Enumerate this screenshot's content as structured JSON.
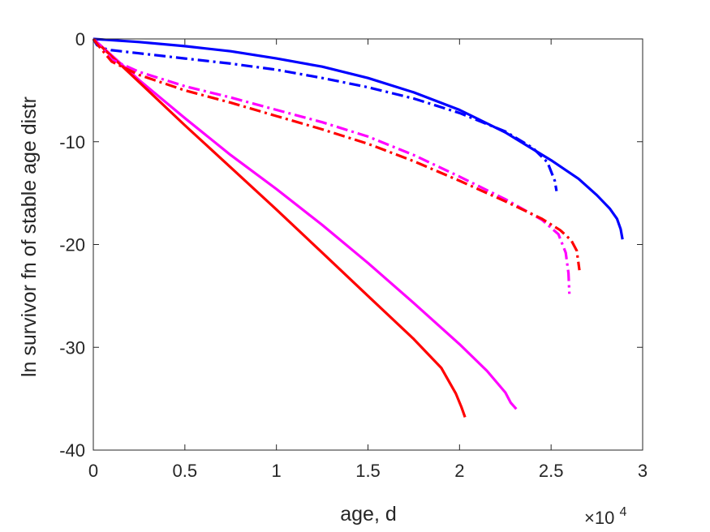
{
  "chart_data": {
    "type": "line",
    "title": "",
    "xlabel": "age, d",
    "ylabel": "ln survivor fn of stable age distr",
    "x_multiplier": "×10",
    "x_multiplier_exponent": "4",
    "xlim": [
      0,
      30000
    ],
    "ylim": [
      -40,
      0
    ],
    "xticks": [
      0,
      5000,
      10000,
      15000,
      20000,
      25000,
      30000
    ],
    "xtick_labels": [
      "0",
      "0.5",
      "1",
      "1.5",
      "2",
      "2.5",
      "3"
    ],
    "yticks": [
      0,
      -10,
      -20,
      -30,
      -40
    ],
    "ytick_labels": [
      "0",
      "-10",
      "-20",
      "-30",
      "-40"
    ],
    "grid": false,
    "legend": "none",
    "series": [
      {
        "color": "#0000ff",
        "style": "solid",
        "x": [
          0,
          2500,
          5000,
          7500,
          10000,
          12500,
          15000,
          17500,
          20000,
          22500,
          25000,
          26500,
          27500,
          28200,
          28600,
          28800,
          28900
        ],
        "y": [
          0,
          -0.3,
          -0.7,
          -1.2,
          -1.9,
          -2.7,
          -3.8,
          -5.2,
          -6.9,
          -9.1,
          -11.8,
          -13.6,
          -15.2,
          -16.5,
          -17.5,
          -18.5,
          -19.5
        ]
      },
      {
        "color": "#0000ff",
        "style": "dashdot",
        "x": [
          0,
          200,
          500,
          1000,
          2500,
          5000,
          7500,
          10000,
          12500,
          15000,
          17500,
          20000,
          22500,
          24000,
          24800,
          25200,
          25300
        ],
        "y": [
          0,
          -0.6,
          -0.9,
          -1.1,
          -1.4,
          -1.9,
          -2.4,
          -3.0,
          -3.8,
          -4.7,
          -5.8,
          -7.2,
          -9.0,
          -10.6,
          -12.0,
          -13.8,
          -14.8
        ]
      },
      {
        "color": "#ff00ff",
        "style": "solid",
        "x": [
          0,
          1000,
          2500,
          5000,
          7500,
          10000,
          12500,
          15000,
          17500,
          20000,
          21500,
          22500,
          22800,
          23100
        ],
        "y": [
          0,
          -1.6,
          -4.0,
          -7.7,
          -11.3,
          -14.6,
          -18.1,
          -21.8,
          -25.7,
          -29.7,
          -32.3,
          -34.4,
          -35.4,
          -36.0
        ]
      },
      {
        "color": "#ff0000",
        "style": "solid",
        "x": [
          0,
          1000,
          2500,
          5000,
          7500,
          10000,
          12500,
          15000,
          17500,
          19000,
          19800,
          20100,
          20300
        ],
        "y": [
          0,
          -1.7,
          -4.2,
          -8.4,
          -12.5,
          -16.6,
          -20.8,
          -25.0,
          -29.2,
          -32.0,
          -34.5,
          -35.8,
          -36.8
        ]
      },
      {
        "color": "#ff00ff",
        "style": "dashdot",
        "x": [
          0,
          300,
          1000,
          2500,
          5000,
          7500,
          10000,
          12500,
          15000,
          17500,
          20000,
          22500,
          24500,
          25400,
          25800,
          25950,
          26000
        ],
        "y": [
          0,
          -0.5,
          -2.0,
          -3.2,
          -4.6,
          -5.7,
          -6.9,
          -8.1,
          -9.5,
          -11.3,
          -13.4,
          -15.6,
          -17.6,
          -19.0,
          -20.8,
          -22.8,
          -24.8
        ]
      },
      {
        "color": "#ff0000",
        "style": "dashdot",
        "x": [
          0,
          300,
          1000,
          2500,
          5000,
          7500,
          10000,
          12500,
          15000,
          17500,
          20000,
          22500,
          24500,
          25500,
          26100,
          26400,
          26550
        ],
        "y": [
          0,
          -0.7,
          -2.2,
          -3.5,
          -5.0,
          -6.2,
          -7.5,
          -8.8,
          -10.2,
          -11.9,
          -13.8,
          -15.8,
          -17.5,
          -18.6,
          -19.6,
          -20.6,
          -22.5
        ]
      }
    ]
  }
}
